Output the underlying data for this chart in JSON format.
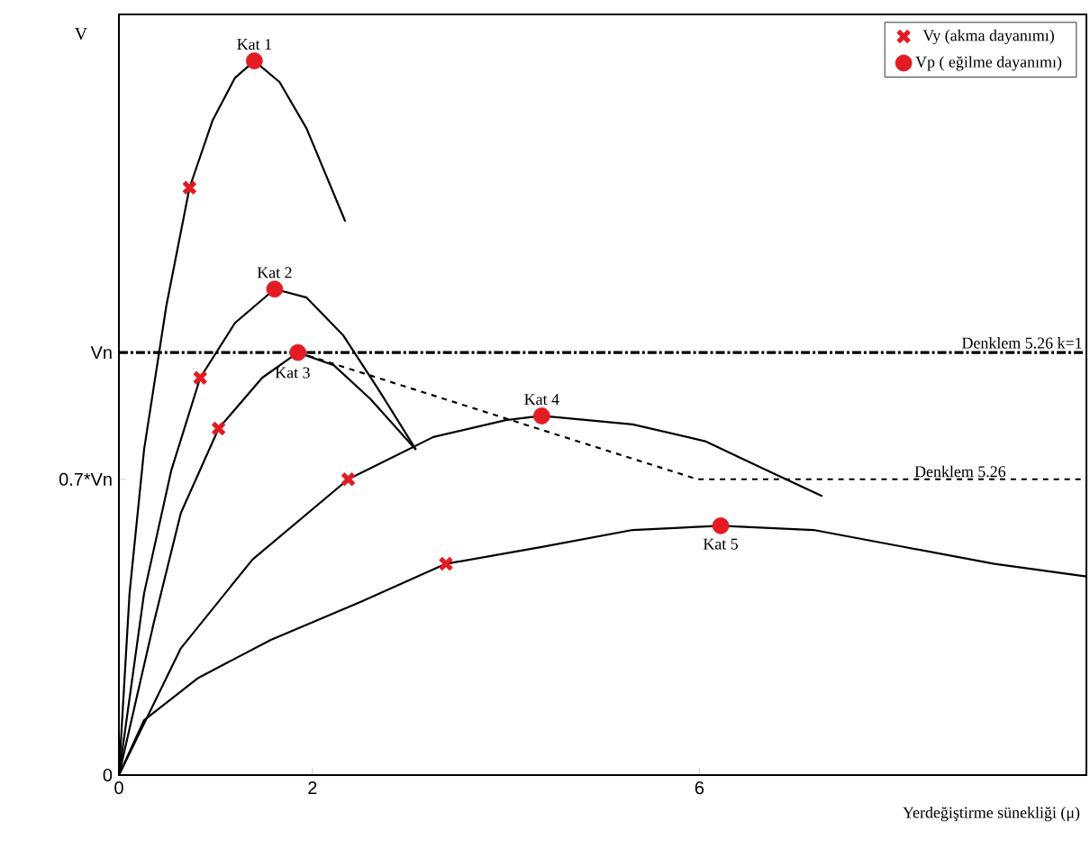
{
  "chart_data": {
    "type": "line",
    "xlabel": "Yerdeğiştirme sünekliği (μ)",
    "ylabel": "V",
    "xlim": [
      0,
      10
    ],
    "ylim": [
      0,
      1.8
    ],
    "xticks": [
      0,
      2,
      6
    ],
    "yticks": [
      0,
      {
        "value": 0.7,
        "label": "0.7*Vn"
      },
      {
        "value": 1,
        "label": "Vn"
      }
    ],
    "grid": false,
    "legend": "top right",
    "series": [
      {
        "color": "#000000",
        "marker": "none",
        "x": [
          0,
          0.11,
          0.26,
          0.49,
          0.73,
          0.97,
          1.2,
          1.4,
          1.66,
          1.94,
          2.34
        ],
        "values": [
          0,
          0.43,
          0.77,
          1.11,
          1.39,
          1.55,
          1.65,
          1.69,
          1.64,
          1.53,
          1.31
        ]
      },
      {
        "color": "#000000",
        "marker": "none",
        "x": [
          0,
          0.26,
          0.54,
          0.84,
          1.2,
          1.61,
          1.94,
          2.32,
          2.69,
          3.07
        ],
        "values": [
          0,
          0.43,
          0.72,
          0.94,
          1.07,
          1.15,
          1.13,
          1.04,
          0.91,
          0.77
        ]
      },
      {
        "color": "#000000",
        "marker": "none",
        "x": [
          0,
          0.36,
          0.64,
          1.03,
          1.48,
          1.85,
          2.22,
          2.6,
          3.07
        ],
        "values": [
          0,
          0.36,
          0.62,
          0.82,
          0.94,
          1.0,
          0.97,
          0.89,
          0.77
        ]
      },
      {
        "color": "#000000",
        "marker": "none",
        "x": [
          0,
          0.64,
          1.38,
          2.37,
          3.25,
          4.0,
          4.37,
          5.31,
          6.06,
          6.8,
          7.27
        ],
        "values": [
          0,
          0.3,
          0.51,
          0.7,
          0.8,
          0.84,
          0.85,
          0.83,
          0.79,
          0.71,
          0.66
        ]
      },
      {
        "color": "#000000",
        "marker": "none",
        "x": [
          0,
          0.26,
          0.82,
          1.57,
          2.5,
          3.38,
          4.37,
          5.31,
          6.22,
          7.18,
          8.11,
          9.05,
          10
        ],
        "values": [
          0,
          0.13,
          0.23,
          0.32,
          0.41,
          0.5,
          0.54,
          0.58,
          0.59,
          0.58,
          0.54,
          0.5,
          0.47
        ]
      },
      {
        "color": "#000000",
        "marker": "none",
        "line_style": "dashed",
        "x": [
          1.85,
          5.98,
          10
        ],
        "values": [
          1.0,
          0.7,
          0.7
        ]
      },
      {
        "type": "scatter",
        "name": "Vy (akma dayanımı)",
        "color": "#e31b23",
        "marker": "cross",
        "x": [
          0.73,
          0.84,
          1.03,
          2.37,
          3.38
        ],
        "values": [
          1.39,
          0.94,
          0.82,
          0.7,
          0.5
        ]
      },
      {
        "type": "scatter",
        "name": "Vp ( eğilme dayanımı)",
        "color": "#e31b23",
        "marker": "circle",
        "x": [
          1.4,
          1.61,
          1.85,
          4.37,
          6.22
        ],
        "values": [
          1.69,
          1.15,
          1.0,
          0.85,
          0.59
        ]
      }
    ],
    "ref_lines": [
      {
        "axis": "y",
        "value": 1,
        "label": "Denklem 5.26 k=1",
        "line_style": "dashed",
        "color": "#000000"
      }
    ],
    "annotations": [
      {
        "text": "Kat 1",
        "x": 1.4,
        "y": 1.69
      },
      {
        "text": "Kat 2",
        "x": 1.61,
        "y": 1.15
      },
      {
        "text": "Kat 3",
        "x": 1.85,
        "y": 1.0
      },
      {
        "text": "Kat 4",
        "x": 4.37,
        "y": 0.85
      },
      {
        "text": "Kat 5",
        "x": 6.22,
        "y": 0.59
      },
      {
        "text": "Denklem 5.26",
        "x": 8.2,
        "y": 0.7
      }
    ]
  }
}
